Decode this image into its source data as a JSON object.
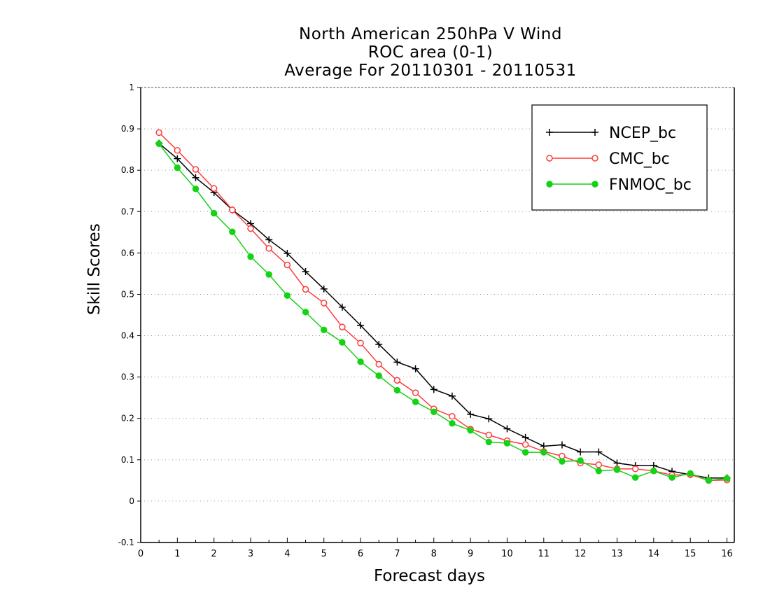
{
  "chart_data": {
    "type": "line",
    "title": [
      "North American 250hPa V Wind",
      "ROC area (0-1)",
      "Average For 20110301 - 20110531"
    ],
    "xlabel": "Forecast days",
    "ylabel": "Skill Scores",
    "xlim": [
      0,
      16.2
    ],
    "ylim": [
      -0.1,
      1
    ],
    "xticks": [
      "0",
      "1",
      "2",
      "3",
      "4",
      "5",
      "6",
      "7",
      "8",
      "9",
      "10",
      "11",
      "12",
      "13",
      "14",
      "15",
      "16"
    ],
    "yticks": [
      "-0.1",
      "0",
      "0.1",
      "0.2",
      "0.3",
      "0.4",
      "0.5",
      "0.6",
      "0.7",
      "0.8",
      "0.9",
      "1"
    ],
    "grid": "dotted horizontal",
    "legend_position": "top-right",
    "x": [
      0.5,
      1,
      1.5,
      2,
      2.5,
      3,
      3.5,
      4,
      4.5,
      5,
      5.5,
      6,
      6.5,
      7,
      7.5,
      8,
      8.5,
      9,
      9.5,
      10,
      10.5,
      11,
      11.5,
      12,
      12.5,
      13,
      13.5,
      14,
      14.5,
      15,
      15.5,
      16
    ],
    "series": [
      {
        "name": "NCEP_bc",
        "color": "#000000",
        "marker": "plus",
        "values": [
          0.865,
          0.828,
          0.782,
          0.746,
          0.704,
          0.671,
          0.632,
          0.599,
          0.555,
          0.513,
          0.469,
          0.425,
          0.379,
          0.336,
          0.32,
          0.27,
          0.254,
          0.21,
          0.199,
          0.175,
          0.154,
          0.133,
          0.136,
          0.119,
          0.119,
          0.092,
          0.086,
          0.086,
          0.072,
          0.064,
          0.056,
          0.056
        ]
      },
      {
        "name": "CMC_bc",
        "color": "#ff3c3c",
        "marker": "open-circle",
        "values": [
          0.891,
          0.848,
          0.802,
          0.756,
          0.704,
          0.659,
          0.611,
          0.571,
          0.512,
          0.479,
          0.421,
          0.382,
          0.331,
          0.292,
          0.262,
          0.223,
          0.205,
          0.174,
          0.16,
          0.146,
          0.137,
          0.12,
          0.109,
          0.092,
          0.088,
          0.078,
          0.078,
          0.073,
          0.063,
          0.064,
          0.05,
          0.051
        ]
      },
      {
        "name": "FNMOC_bc",
        "color": "#14d214",
        "marker": "filled-circle",
        "values": [
          0.864,
          0.806,
          0.755,
          0.696,
          0.651,
          0.591,
          0.548,
          0.497,
          0.457,
          0.414,
          0.384,
          0.337,
          0.303,
          0.268,
          0.24,
          0.216,
          0.188,
          0.171,
          0.143,
          0.14,
          0.118,
          0.118,
          0.096,
          0.098,
          0.073,
          0.076,
          0.057,
          0.073,
          0.057,
          0.067,
          0.05,
          0.055
        ]
      }
    ]
  }
}
